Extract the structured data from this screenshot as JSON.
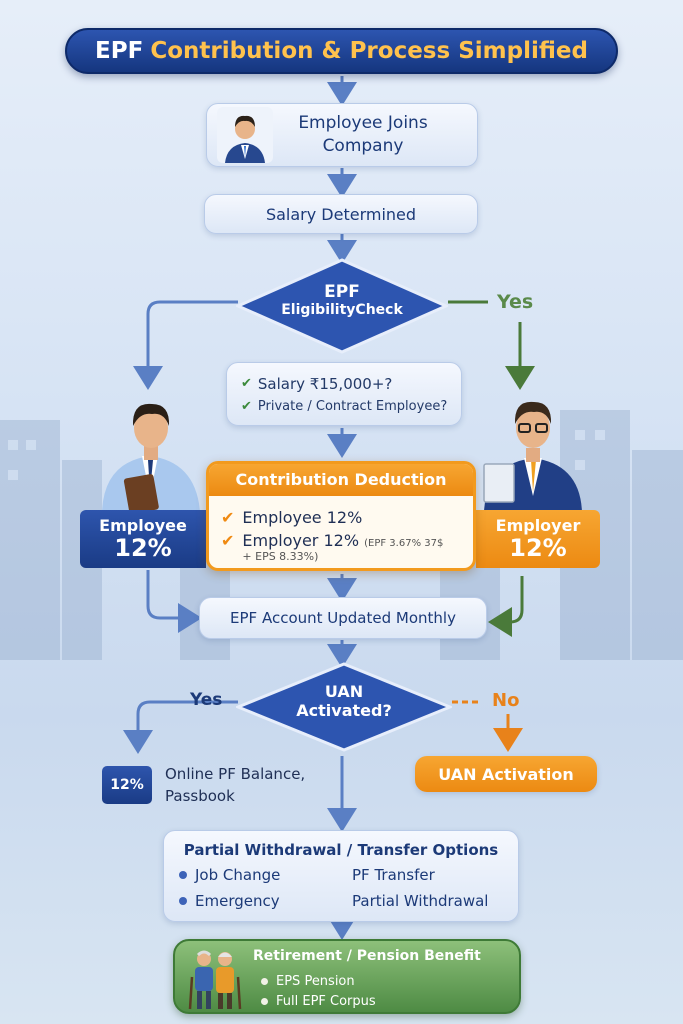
{
  "title": {
    "part1": "EPF",
    "part2": "Contribution & Process Simplified"
  },
  "steps": {
    "joins": "Employee Joins Company",
    "salary": "Salary Determined",
    "eligibility": {
      "line1": "EPF",
      "line2": "EligibilityCheck"
    },
    "yes_top": "Yes",
    "criteria": [
      "Salary ₹15,000+?",
      "Private / Contract Employee?"
    ],
    "employee": {
      "label": "Employee",
      "pct": "12%"
    },
    "employer": {
      "label": "Employer",
      "pct": "12%"
    },
    "contribution": {
      "title": "Contribution Deduction",
      "row1": "Employee 12%",
      "row2_main": "Employer 12%",
      "row2_small": "(EPF 3.67% 37$",
      "row2_small2": "+ EPS 8.33%)"
    },
    "updated": "EPF Account Updated Monthly",
    "uan": {
      "line1": "UAN",
      "line2": "Activated?"
    },
    "yes": "Yes",
    "no": "No",
    "online_icon": "12%",
    "online": {
      "line1": "Online PF Balance,",
      "line2": "Passbook"
    },
    "uan_activation": "UAN Activation",
    "options": {
      "title": "Partial Withdrawal / Transfer Options",
      "rows": [
        {
          "left": "Job Change",
          "right": "PF Transfer"
        },
        {
          "left": "Emergency",
          "right": "Partial Withdrawal"
        }
      ]
    },
    "retirement": {
      "title": "Retirement / Pension Benefit",
      "items": [
        "EPS Pension",
        "Full EPF Corpus"
      ]
    }
  },
  "colors": {
    "navy": "#1c3a78",
    "blue": "#2d55b0",
    "orange": "#f29a1e",
    "green": "#4e8b44",
    "yes_green": "#5a8a4a",
    "no_orange": "#e8821a"
  },
  "icons": [
    "employee-avatar-icon",
    "employee-figure-icon",
    "employer-figure-icon",
    "briefcase-icon",
    "elderly-couple-icon"
  ]
}
